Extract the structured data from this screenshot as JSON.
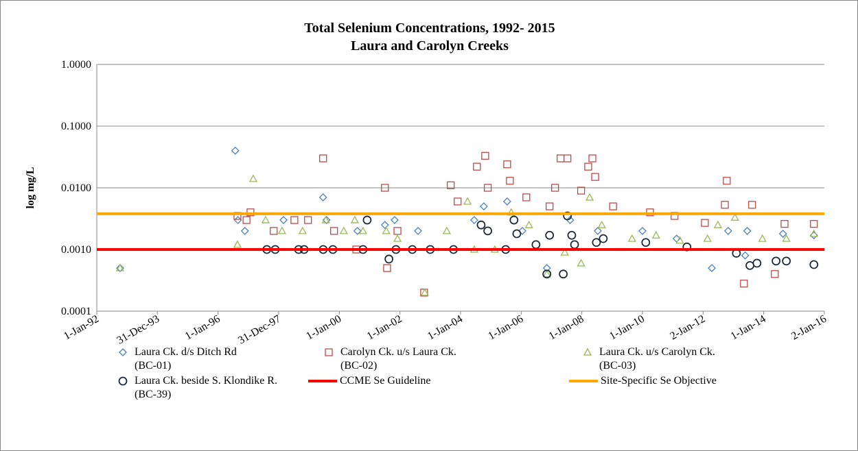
{
  "chart_data": {
    "type": "scatter",
    "title": "Total Selenium Concentrations, 1992- 2015",
    "subtitle": "Laura and Carolyn Creeks",
    "y_label": "log mg/L",
    "log_y": true,
    "grid": true,
    "xlim": [
      "1992-01-01",
      "2016-01-02"
    ],
    "xticks": [
      {
        "value": "1992-01-01",
        "label": "1-Jan-92"
      },
      {
        "value": "1993-12-31",
        "label": "31-Dec-93"
      },
      {
        "value": "1996-01-01",
        "label": "1-Jan-96"
      },
      {
        "value": "1997-12-31",
        "label": "31-Dec-97"
      },
      {
        "value": "2000-01-01",
        "label": "1-Jan-00"
      },
      {
        "value": "2002-01-01",
        "label": "1-Jan-02"
      },
      {
        "value": "2004-01-01",
        "label": "1-Jan-04"
      },
      {
        "value": "2006-01-01",
        "label": "1-Jan-06"
      },
      {
        "value": "2008-01-01",
        "label": "1-Jan-08"
      },
      {
        "value": "2010-01-01",
        "label": "1-Jan-10"
      },
      {
        "value": "2012-01-02",
        "label": "2-Jan-12"
      },
      {
        "value": "2014-01-01",
        "label": "1-Jan-14"
      },
      {
        "value": "2016-01-02",
        "label": "2-Jan-16"
      }
    ],
    "ylim": [
      0.0001,
      1
    ],
    "yticks": [
      {
        "value": 0.0001,
        "label": "0.0001"
      },
      {
        "value": 0.001,
        "label": "0.0010"
      },
      {
        "value": 0.01,
        "label": "0.0100"
      },
      {
        "value": 0.1,
        "label": "0.1000"
      },
      {
        "value": 1,
        "label": "1.0000"
      }
    ],
    "series": [
      {
        "name": "Laura Ck. d/s Ditch Rd\n(BC-01)",
        "marker": "diamond",
        "color": "#4a7ebb",
        "x": [
          "1992-10-08",
          "1996-07-27",
          "1996-08-28",
          "1996-11-20",
          "1998-02-28",
          "1999-06-20",
          "1999-07-31",
          "2000-08-07",
          "2001-07-04",
          "2001-10-29",
          "2002-08-07",
          "2004-06-14",
          "2004-10-08",
          "2005-07-16",
          "2006-01-15",
          "2006-11-06",
          "2007-08-14",
          "2008-07-12",
          "2010-01-01",
          "2011-02-17",
          "2012-04-16",
          "2012-10-30",
          "2013-05-23",
          "2013-06-17",
          "2014-08-21",
          "2015-08-29"
        ],
        "values": [
          0.0005,
          0.04,
          0.003,
          0.002,
          0.003,
          0.007,
          0.003,
          0.002,
          0.0025,
          0.003,
          0.002,
          0.003,
          0.005,
          0.006,
          0.002,
          0.0005,
          0.003,
          0.002,
          0.002,
          0.0015,
          0.0005,
          0.002,
          0.0008,
          0.002,
          0.0018,
          0.0017
        ]
      },
      {
        "name": "Carolyn Ck. u/s Laura Ck.\n(BC-02)",
        "marker": "square",
        "color": "#be4b48",
        "x": [
          "1996-08-22",
          "1996-12-09",
          "1997-01-26",
          "1997-11-02",
          "1998-07-09",
          "1998-12-20",
          "1999-06-20",
          "1999-10-30",
          "2000-07-24",
          "2001-07-04",
          "2001-07-30",
          "2001-12-02",
          "2002-10-19",
          "2003-09-05",
          "2003-11-27",
          "2004-07-16",
          "2004-10-24",
          "2004-11-24",
          "2005-07-16",
          "2005-08-18",
          "2006-03-04",
          "2006-12-09",
          "2007-02-13",
          "2007-04-20",
          "2007-07-12",
          "2007-12-24",
          "2008-03-18",
          "2008-05-08",
          "2008-06-10",
          "2009-01-12",
          "2010-04-02",
          "2011-01-23",
          "2012-01-23",
          "2012-09-20",
          "2012-10-13",
          "2013-05-08",
          "2013-08-14",
          "2014-05-15",
          "2014-09-09",
          "2015-08-29"
        ],
        "values": [
          0.0035,
          0.003,
          0.004,
          0.002,
          0.003,
          0.003,
          0.03,
          0.002,
          0.001,
          0.01,
          0.0005,
          0.002,
          0.0002,
          0.011,
          0.006,
          0.022,
          0.033,
          0.01,
          0.024,
          0.013,
          0.007,
          0.005,
          0.01,
          0.03,
          0.03,
          0.009,
          0.022,
          0.03,
          0.015,
          0.005,
          0.004,
          0.0035,
          0.0027,
          0.0053,
          0.013,
          0.00028,
          0.0053,
          0.0004,
          0.0026,
          0.0026
        ]
      },
      {
        "name": "Laura Ck. u/s Carolyn Ck.\n(BC-03)",
        "marker": "triangle",
        "color": "#98b954",
        "x": [
          "1992-10-08",
          "1996-08-22",
          "1997-02-28",
          "1997-07-27",
          "1998-02-10",
          "1998-10-16",
          "1999-07-23",
          "2000-02-24",
          "2000-07-06",
          "2000-10-13",
          "2001-07-20",
          "2001-12-02",
          "2002-10-27",
          "2003-07-19",
          "2004-03-25",
          "2004-06-14",
          "2005-02-17",
          "2005-09-02",
          "2006-04-05",
          "2006-11-06",
          "2007-06-10",
          "2007-12-24",
          "2008-04-05",
          "2008-08-29",
          "2009-08-29",
          "2010-06-14",
          "2011-03-28",
          "2012-02-24",
          "2012-06-28",
          "2013-01-19",
          "2013-12-16",
          "2014-10-01",
          "2015-08-29"
        ],
        "values": [
          0.0005,
          0.0012,
          0.014,
          0.003,
          0.002,
          0.002,
          0.003,
          0.002,
          0.003,
          0.002,
          0.002,
          0.0015,
          0.0002,
          0.002,
          0.006,
          0.001,
          0.001,
          0.004,
          0.0025,
          0.0004,
          0.0009,
          0.0006,
          0.007,
          0.0025,
          0.0015,
          0.0017,
          0.0014,
          0.0015,
          0.0025,
          0.0033,
          0.0015,
          0.0015,
          0.0018
        ]
      },
      {
        "name": "Laura Ck. beside S. Klondike R.\n(BC-39)",
        "marker": "circle",
        "color": "#1b2a3a",
        "x": [
          "1997-08-11",
          "1997-11-20",
          "1998-08-29",
          "1998-11-03",
          "1999-06-21",
          "1999-10-16",
          "2000-10-13",
          "2000-12-02",
          "2001-08-21",
          "2001-11-14",
          "2002-05-30",
          "2003-01-01",
          "2003-10-08",
          "2004-09-05",
          "2004-11-24",
          "2005-06-28",
          "2005-10-06",
          "2005-11-09",
          "2006-06-28",
          "2006-11-06",
          "2006-12-09",
          "2007-05-23",
          "2007-07-12",
          "2007-09-02",
          "2007-10-06",
          "2008-06-25",
          "2008-09-16",
          "2010-02-10",
          "2011-06-21",
          "2013-02-06",
          "2013-07-19",
          "2013-10-12",
          "2014-05-30",
          "2014-10-01",
          "2015-08-29"
        ],
        "values": [
          0.001,
          0.001,
          0.001,
          0.001,
          0.001,
          0.001,
          0.001,
          0.003,
          0.0007,
          0.001,
          0.001,
          0.001,
          0.001,
          0.0025,
          0.002,
          0.001,
          0.003,
          0.0018,
          0.0012,
          0.0004,
          0.0017,
          0.0004,
          0.0035,
          0.0017,
          0.0012,
          0.0013,
          0.0015,
          0.0013,
          0.0011,
          0.00087,
          0.00055,
          0.0006,
          0.00065,
          0.00065,
          0.00057
        ]
      }
    ],
    "hlines": [
      {
        "name": "CCME Se Guideline",
        "value": 0.001,
        "color": "#ff0000"
      },
      {
        "name": "Site-Specific Se Objective",
        "value": 0.0038,
        "color": "#ffa500"
      }
    ]
  }
}
